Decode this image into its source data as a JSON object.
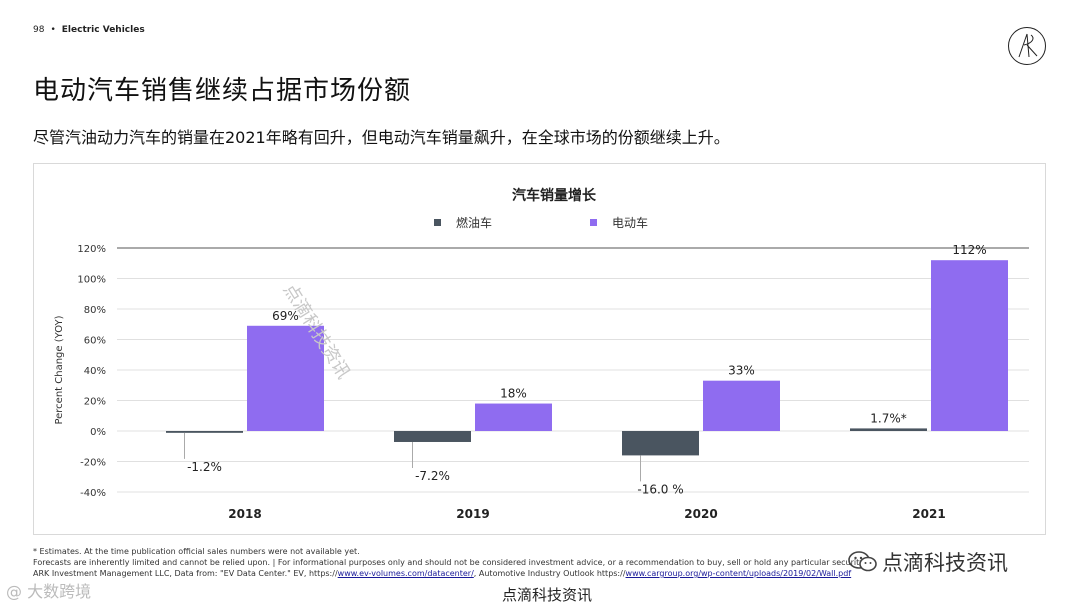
{
  "header": {
    "page_number": "98",
    "separator": "•",
    "section": "Electric Vehicles"
  },
  "slide": {
    "title": "电动汽车销售继续占据市场份额",
    "subtitle": "尽管汽油动力汽车的销量在2021年略有回升，但电动汽车销量飙升，在全球市场的份额继续上升。"
  },
  "colors": {
    "ice": "#4a5560",
    "ev": "#8f6cf0",
    "grid": "#d6d6d6",
    "axis": "#555555"
  },
  "chart_data": {
    "type": "bar",
    "title": "汽车销量增长",
    "ylabel": "Percent Change (YOY)",
    "xlabel": "",
    "categories": [
      "2018",
      "2019",
      "2020",
      "2021"
    ],
    "ylim": [
      -40,
      120
    ],
    "yticks": [
      -40,
      -20,
      0,
      20,
      40,
      60,
      80,
      100,
      120
    ],
    "ytick_labels": [
      "-40%",
      "-20%",
      "0%",
      "20%",
      "40%",
      "60%",
      "80%",
      "100%",
      "120%"
    ],
    "grid": true,
    "legend_position": "top-center",
    "series": [
      {
        "name": "燃油车",
        "values": [
          -1.2,
          -7.2,
          -16.0,
          1.7
        ],
        "labels": [
          "-1.2%",
          "-7.2%",
          "-16.0 %",
          "1.7%*"
        ]
      },
      {
        "name": "电动车",
        "values": [
          69,
          18,
          33,
          112
        ],
        "labels": [
          "69%",
          "18%",
          "33%",
          "112%"
        ]
      }
    ]
  },
  "footnotes": {
    "line1": "* Estimates. At the time publication official sales numbers were not available yet.",
    "line2": "Forecasts are inherently limited and cannot be relied upon. | For informational purposes only and should not be considered investment advice, or a recommendation to buy, sell or hold any particular security.",
    "line3_prefix": "ARK Investment Management LLC, Data from: \"EV Data Center.\" EV, https://",
    "link1": "www.ev-volumes.com/datacenter/",
    "line3_mid": ", Automotive Industry Outlook  https://",
    "link2": "www.cargroup.org/wp-content/uploads/2019/02/Wall.pdf"
  },
  "watermarks": {
    "right": "点滴科技资讯",
    "bottom": "点滴科技资讯",
    "left": "@ 大数跨境",
    "diagonal": "点滴科技资讯"
  }
}
